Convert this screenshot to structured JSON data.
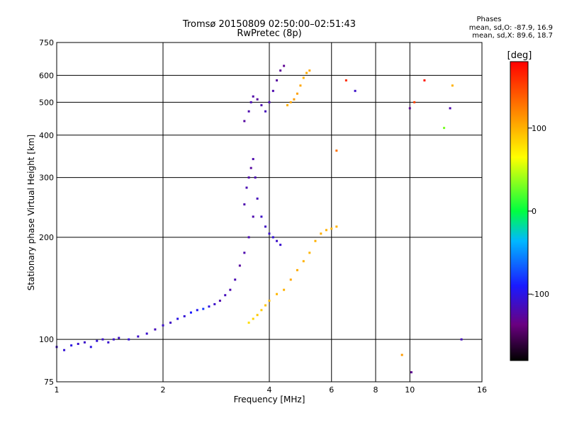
{
  "header": {
    "title": "Tromsø 20150809 02:50:00–02:51:43",
    "subtitle": "RwPretec (8p)"
  },
  "phase_panel": {
    "title": "Phases",
    "line_o": "mean, sd,O: -87.9, 16.9",
    "line_x": "mean, sd,X:  89.6, 18.7"
  },
  "colorbar": {
    "label": "[deg]",
    "ticks": [
      "100",
      "0",
      "-100"
    ],
    "tick_values": [
      100,
      0,
      -100
    ],
    "range": [
      -180,
      180
    ]
  },
  "chart_data": {
    "type": "scatter",
    "xlabel": "Frequency [MHz]",
    "ylabel": "Stationary phase Virtual Height [km]",
    "xscale": "log",
    "yscale": "log",
    "xlim": [
      1,
      16
    ],
    "ylim": [
      75,
      750
    ],
    "x_ticks": [
      "1",
      "2",
      "4",
      "6",
      "8",
      "10",
      "16"
    ],
    "x_tick_values": [
      1,
      2,
      4,
      6,
      8,
      10,
      16
    ],
    "y_ticks": [
      "75",
      "100",
      "200",
      "300",
      "400",
      "500",
      "600",
      "750"
    ],
    "y_tick_values": [
      75,
      100,
      200,
      300,
      400,
      500,
      600,
      750
    ],
    "grid": true,
    "color_by": "phase [deg]",
    "series": [
      {
        "x": [
          1.0,
          1.05,
          1.1,
          1.15,
          1.2,
          1.25,
          1.3,
          1.35,
          1.4,
          1.45,
          1.5,
          1.6,
          1.7,
          1.8,
          1.9,
          2.0,
          2.1,
          2.2,
          2.3,
          2.4,
          2.5,
          2.6,
          2.7,
          2.8,
          2.9,
          3.0,
          3.1,
          3.2,
          3.3,
          3.4,
          3.5,
          3.6
        ],
        "y": [
          95,
          93,
          96,
          97,
          98,
          95,
          99,
          100,
          98,
          100,
          101,
          100,
          102,
          104,
          107,
          110,
          112,
          115,
          117,
          120,
          122,
          123,
          125,
          127,
          130,
          135,
          140,
          150,
          165,
          180,
          200,
          230
        ],
        "phase": [
          -110,
          -105,
          -100,
          -108,
          -110,
          -100,
          -105,
          -110,
          -108,
          -110,
          -112,
          -105,
          -110,
          -108,
          -115,
          -110,
          -112,
          -100,
          -105,
          -90,
          -95,
          -80,
          -100,
          -110,
          -120,
          -115,
          -120,
          -118,
          -125,
          -120,
          -118,
          -120
        ]
      },
      {
        "x": [
          3.4,
          3.45,
          3.5,
          3.55,
          3.6,
          3.65,
          3.7,
          3.8,
          3.9,
          4.0,
          4.1,
          4.2,
          4.3
        ],
        "y": [
          250,
          280,
          300,
          320,
          340,
          300,
          260,
          230,
          215,
          205,
          200,
          195,
          190
        ],
        "phase": [
          -120,
          -118,
          -122,
          -125,
          -120,
          -118,
          -115,
          -110,
          -112,
          -108,
          -105,
          -110,
          -108
        ]
      },
      {
        "x": [
          3.5,
          3.6,
          3.7,
          3.8,
          3.9,
          4.0,
          4.2,
          4.4,
          4.6,
          4.8,
          5.0,
          5.2,
          5.4,
          5.6,
          5.8,
          6.0,
          6.2
        ],
        "y": [
          112,
          115,
          118,
          122,
          126,
          130,
          136,
          140,
          150,
          160,
          170,
          180,
          195,
          205,
          210,
          212,
          215
        ],
        "phase": [
          80,
          85,
          90,
          88,
          92,
          95,
          98,
          100,
          105,
          102,
          100,
          98,
          100,
          102,
          100,
          98,
          100
        ]
      },
      {
        "x": [
          3.4,
          3.5,
          3.55,
          3.6,
          3.7,
          3.8,
          3.9,
          4.0,
          4.1,
          4.2,
          4.3,
          4.4
        ],
        "y": [
          440,
          470,
          500,
          520,
          510,
          490,
          470,
          500,
          540,
          580,
          620,
          640
        ],
        "phase": [
          -125,
          -120,
          -118,
          -122,
          -125,
          -120,
          -115,
          -118,
          -120,
          -125,
          -128,
          -130
        ]
      },
      {
        "x": [
          4.5,
          4.6,
          4.7,
          4.8,
          4.9,
          5.0,
          5.1,
          5.2
        ],
        "y": [
          490,
          500,
          510,
          530,
          560,
          590,
          610,
          620
        ],
        "phase": [
          100,
          105,
          110,
          108,
          105,
          100,
          102,
          105
        ]
      },
      {
        "x": [
          6.2,
          6.6,
          7.0,
          10.0,
          10.3,
          11.0,
          12.5,
          13.0,
          13.2,
          14.0,
          9.5,
          10.1
        ],
        "y": [
          360,
          580,
          540,
          480,
          500,
          580,
          420,
          480,
          560,
          100,
          90,
          80
        ],
        "phase": [
          130,
          160,
          -110,
          -130,
          150,
          170,
          30,
          -120,
          100,
          -115,
          110,
          -130
        ]
      }
    ]
  }
}
